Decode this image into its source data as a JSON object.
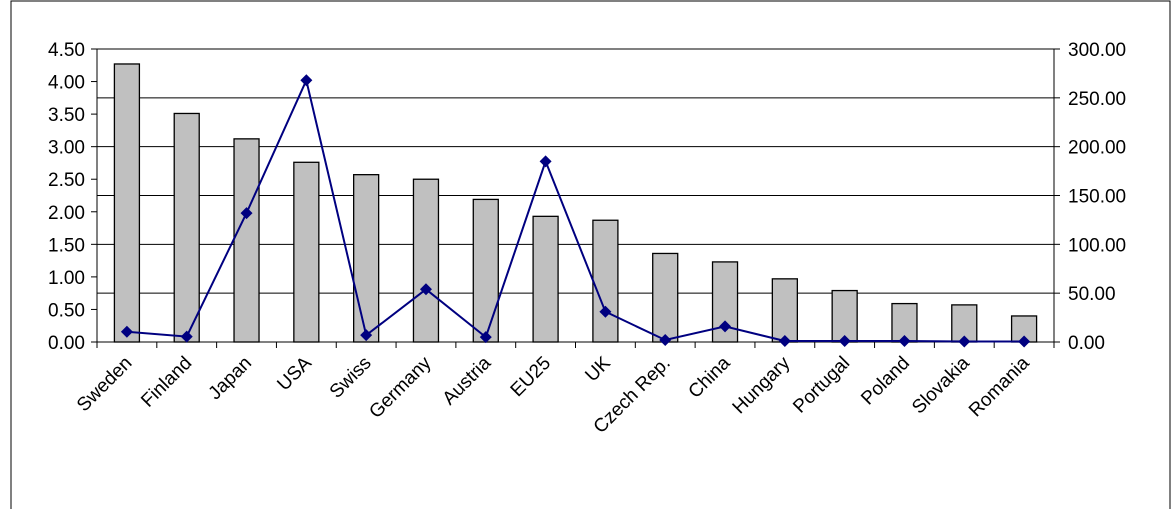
{
  "chart_data": {
    "type": "bar",
    "title": "",
    "xlabel": "",
    "ylabel": "",
    "y2label": "",
    "categories": [
      "Sweden",
      "Finland",
      "Japan",
      "USA",
      "Swiss",
      "Germany",
      "Austria",
      "EU25",
      "UK",
      "Czech Rep.",
      "China",
      "Hungary",
      "Portugal",
      "Poland",
      "Slovakia",
      "Romania"
    ],
    "series": [
      {
        "type": "bar",
        "axis": "left",
        "color": "#c0c0c0",
        "values": [
          4.27,
          3.51,
          3.12,
          2.76,
          2.57,
          2.5,
          2.19,
          1.93,
          1.87,
          1.36,
          1.23,
          0.97,
          0.79,
          0.59,
          0.57,
          0.4
        ]
      },
      {
        "type": "line",
        "axis": "right",
        "color": "#000080",
        "marker": "diamond",
        "values": [
          10.5,
          5.5,
          132.0,
          268.0,
          7.0,
          54.0,
          5.0,
          185.0,
          31.0,
          2.0,
          16.0,
          1.0,
          1.0,
          1.0,
          0.5,
          0.5
        ]
      }
    ],
    "y_left": {
      "min": 0,
      "max": 4.5,
      "ticks": [
        "0.00",
        "0.50",
        "1.00",
        "1.50",
        "2.00",
        "2.50",
        "3.00",
        "3.50",
        "4.00",
        "4.50"
      ]
    },
    "y_right": {
      "min": 0,
      "max": 300,
      "ticks": [
        "0.00",
        "50.00",
        "100.00",
        "150.00",
        "200.00",
        "250.00",
        "300.00"
      ]
    },
    "grid": true,
    "legend": "none"
  }
}
